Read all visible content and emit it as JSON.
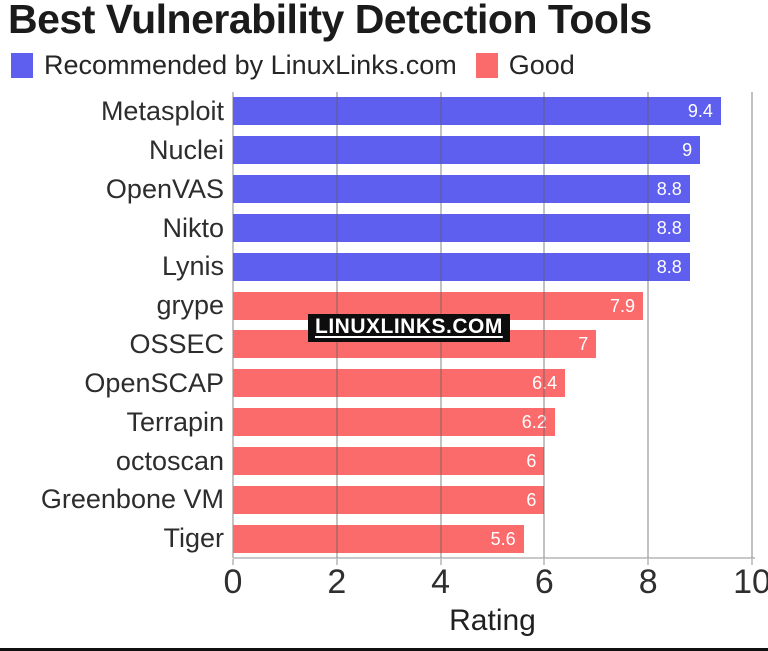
{
  "title": "Best Vulnerability Detection Tools",
  "watermark": {
    "text": "LINUXLINKS.COM",
    "bg": "#0d0d0d",
    "fg": "#ffffff"
  },
  "colors": {
    "recommended": "#5e5eef",
    "good": "#fb6b6b",
    "gridline": "#c3c3c3",
    "axis": "#c8c8c8"
  },
  "legend": {
    "entries": [
      {
        "label": "Recommended by LinuxLinks.com",
        "color": "#5e5eef"
      },
      {
        "label": "Good",
        "color": "#fb6b6b"
      }
    ]
  },
  "chart_data": {
    "type": "bar",
    "orientation": "horizontal",
    "title": "Best Vulnerability Detection Tools",
    "xlabel": "Rating",
    "xlim": [
      0,
      10
    ],
    "xticks": [
      0,
      2,
      4,
      6,
      8,
      10
    ],
    "grid": true,
    "legend_position": "top-left",
    "categories": [
      "Metasploit",
      "Nuclei",
      "OpenVAS",
      "Nikto",
      "Lynis",
      "grype",
      "OSSEC",
      "OpenSCAP",
      "Terrapin",
      "octoscan",
      "Greenbone VM",
      "Tiger"
    ],
    "series": [
      {
        "name": "Recommended by LinuxLinks.com",
        "color": "#5e5eef",
        "values": [
          9.4,
          9,
          8.8,
          8.8,
          8.8,
          null,
          null,
          null,
          null,
          null,
          null,
          null
        ]
      },
      {
        "name": "Good",
        "color": "#fb6b6b",
        "values": [
          null,
          null,
          null,
          null,
          null,
          7.9,
          7,
          6.4,
          6.2,
          6,
          6,
          5.6
        ]
      }
    ],
    "bar_labels": [
      "9.4",
      "9",
      "8.8",
      "8.8",
      "8.8",
      "7.9",
      "7",
      "6.4",
      "6.2",
      "6",
      "6",
      "5.6"
    ]
  }
}
